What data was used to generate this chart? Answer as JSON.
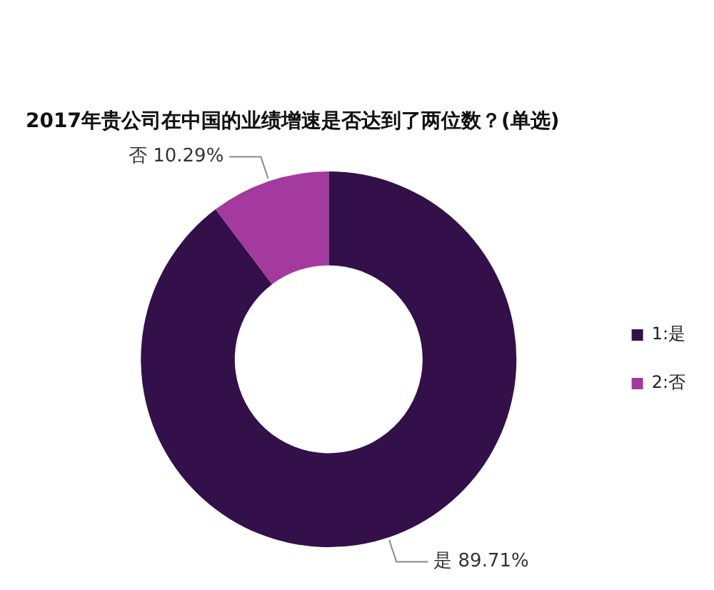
{
  "chart_data": {
    "type": "donut",
    "title": "2017年贵公司在中国的业绩增速是否达到了两位数？(单选)",
    "categories": [
      "1:是",
      "2:否"
    ],
    "values": [
      89.71,
      10.29
    ],
    "colors": [
      "#33104a",
      "#a43a9e"
    ],
    "value_labels": [
      "是 89.71%",
      "否 10.29%"
    ],
    "legend": "right"
  }
}
